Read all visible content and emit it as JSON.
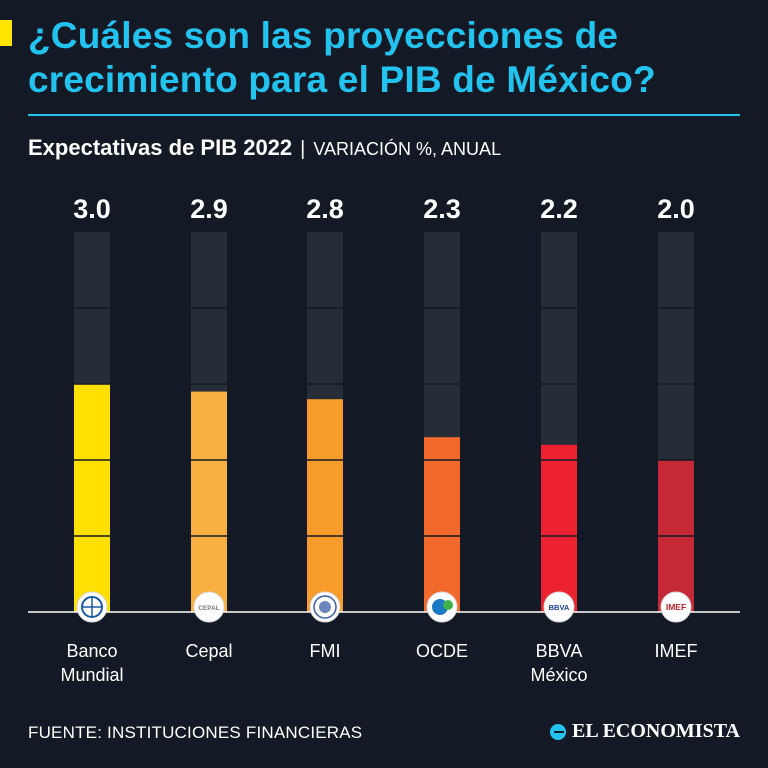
{
  "header": {
    "title": "¿Cuáles son las proyecciones de crecimiento para el PIB de México?",
    "subtitle_main": "Expectativas de PIB 2022",
    "subtitle_separator": "|",
    "subtitle_unit": "VARIACIÓN %, ANUAL"
  },
  "chart_data": {
    "type": "bar",
    "categories": [
      "Banco Mundial",
      "Cepal",
      "FMI",
      "OCDE",
      "BBVA México",
      "IMEF"
    ],
    "category_lines": [
      [
        "Banco",
        "Mundial"
      ],
      [
        "Cepal"
      ],
      [
        "FMI"
      ],
      [
        "OCDE"
      ],
      [
        "BBVA",
        "México"
      ],
      [
        "IMEF"
      ]
    ],
    "values": [
      3.0,
      2.9,
      2.8,
      2.3,
      2.2,
      2.0
    ],
    "value_labels": [
      "3.0",
      "2.9",
      "2.8",
      "2.3",
      "2.2",
      "2.0"
    ],
    "bar_colors": [
      "#ffe000",
      "#f9b040",
      "#f79b2a",
      "#f26a2b",
      "#ec2230",
      "#c62a37"
    ],
    "ylim": [
      0,
      5
    ],
    "grid": true,
    "logos": [
      "world-bank-logo",
      "cepal-logo",
      "imf-logo",
      "oecd-logo",
      "bbva-logo",
      "imef-logo"
    ],
    "logo_texts": [
      "",
      "CEPAL",
      "",
      "",
      "BBVA",
      "IMEF"
    ]
  },
  "colors": {
    "background": "#131a25",
    "track": "#262d37",
    "accent": "#23c3f0",
    "highlight": "#ffe500"
  },
  "footer": {
    "source": "FUENTE: INSTITUCIONES FINANCIERAS",
    "brand": "EL ECONOMISTA"
  }
}
